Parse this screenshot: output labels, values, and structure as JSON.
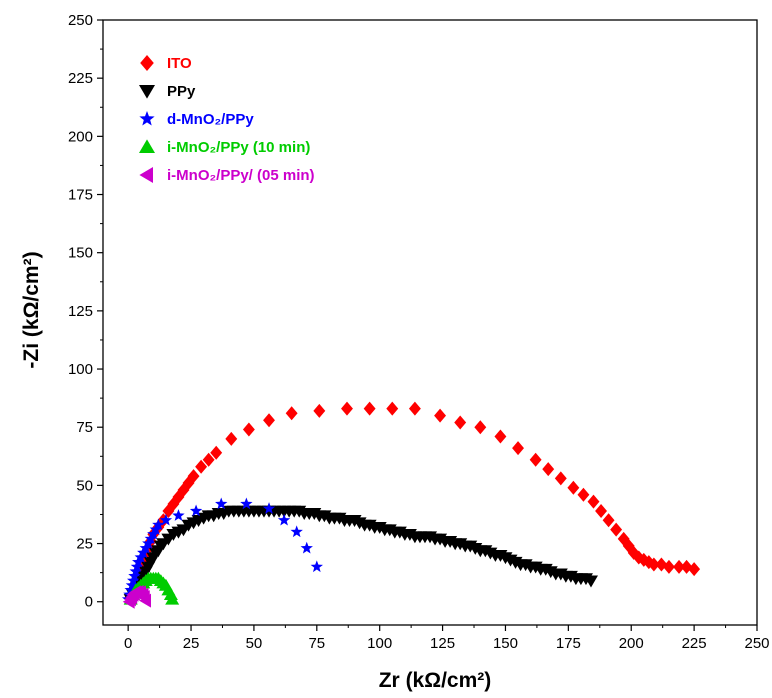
{
  "chart_data": {
    "type": "scatter",
    "xlabel": "Zr (kΩ/cm²)",
    "ylabel": "-Zi (kΩ/cm²)",
    "xlim": [
      -10,
      250
    ],
    "ylim": [
      -10,
      250
    ],
    "x_ticks": [
      "0",
      "25",
      "50",
      "75",
      "100",
      "125",
      "150",
      "175",
      "200",
      "225",
      "250"
    ],
    "y_ticks": [
      "0",
      "25",
      "50",
      "75",
      "100",
      "125",
      "150",
      "175",
      "200",
      "225",
      "250"
    ],
    "grid": false,
    "legend_position": "top-left",
    "series": [
      {
        "name": "ITO",
        "color": "#ff0000",
        "marker": "diamond",
        "points": [
          [
            1,
            2
          ],
          [
            2,
            5
          ],
          [
            3,
            8
          ],
          [
            4,
            11
          ],
          [
            5,
            14
          ],
          [
            6,
            17
          ],
          [
            7,
            20
          ],
          [
            8,
            23
          ],
          [
            9,
            26
          ],
          [
            10,
            29
          ],
          [
            12,
            32
          ],
          [
            14,
            35
          ],
          [
            16,
            39
          ],
          [
            18,
            42
          ],
          [
            20,
            45
          ],
          [
            22,
            48
          ],
          [
            24,
            51
          ],
          [
            26,
            54
          ],
          [
            29,
            58
          ],
          [
            32,
            61
          ],
          [
            35,
            64
          ],
          [
            41,
            70
          ],
          [
            48,
            74
          ],
          [
            56,
            78
          ],
          [
            65,
            81
          ],
          [
            76,
            82
          ],
          [
            87,
            83
          ],
          [
            96,
            83
          ],
          [
            105,
            83
          ],
          [
            114,
            83
          ],
          [
            124,
            80
          ],
          [
            132,
            77
          ],
          [
            140,
            75
          ],
          [
            148,
            71
          ],
          [
            155,
            66
          ],
          [
            162,
            61
          ],
          [
            167,
            57
          ],
          [
            172,
            53
          ],
          [
            177,
            49
          ],
          [
            181,
            46
          ],
          [
            185,
            43
          ],
          [
            188,
            39
          ],
          [
            191,
            35
          ],
          [
            194,
            31
          ],
          [
            197,
            27
          ],
          [
            199,
            24
          ],
          [
            201,
            21
          ],
          [
            203,
            19
          ],
          [
            205,
            18
          ],
          [
            207,
            17
          ],
          [
            209,
            16
          ],
          [
            212,
            16
          ],
          [
            215,
            15
          ],
          [
            219,
            15
          ],
          [
            222,
            15
          ],
          [
            225,
            14
          ]
        ]
      },
      {
        "name": "PPy",
        "color": "#000000",
        "marker": "triangle-down",
        "points": [
          [
            1,
            1
          ],
          [
            2,
            3
          ],
          [
            3,
            5
          ],
          [
            4,
            7
          ],
          [
            5,
            9
          ],
          [
            6,
            11
          ],
          [
            7,
            13
          ],
          [
            8,
            15
          ],
          [
            9,
            17
          ],
          [
            10,
            19
          ],
          [
            11,
            21
          ],
          [
            12,
            22
          ],
          [
            13,
            24
          ],
          [
            14,
            25
          ],
          [
            16,
            27
          ],
          [
            18,
            29
          ],
          [
            20,
            30
          ],
          [
            22,
            31
          ],
          [
            24,
            33
          ],
          [
            26,
            34
          ],
          [
            28,
            35
          ],
          [
            30,
            36
          ],
          [
            32,
            37
          ],
          [
            34,
            37
          ],
          [
            36,
            38
          ],
          [
            38,
            38
          ],
          [
            40,
            39
          ],
          [
            42,
            39
          ],
          [
            44,
            39
          ],
          [
            46,
            39
          ],
          [
            48,
            39
          ],
          [
            50,
            39
          ],
          [
            52,
            39
          ],
          [
            54,
            39
          ],
          [
            56,
            39
          ],
          [
            58,
            39
          ],
          [
            60,
            39
          ],
          [
            62,
            39
          ],
          [
            64,
            39
          ],
          [
            66,
            39
          ],
          [
            68,
            39
          ],
          [
            70,
            38
          ],
          [
            72,
            38
          ],
          [
            74,
            38
          ],
          [
            76,
            37
          ],
          [
            78,
            37
          ],
          [
            80,
            36
          ],
          [
            82,
            36
          ],
          [
            84,
            36
          ],
          [
            86,
            35
          ],
          [
            88,
            35
          ],
          [
            90,
            35
          ],
          [
            92,
            34
          ],
          [
            94,
            33
          ],
          [
            96,
            33
          ],
          [
            98,
            32
          ],
          [
            100,
            32
          ],
          [
            102,
            31
          ],
          [
            104,
            31
          ],
          [
            106,
            30
          ],
          [
            108,
            30
          ],
          [
            110,
            29
          ],
          [
            112,
            29
          ],
          [
            114,
            28
          ],
          [
            116,
            28
          ],
          [
            118,
            28
          ],
          [
            120,
            28
          ],
          [
            122,
            27
          ],
          [
            124,
            27
          ],
          [
            126,
            26
          ],
          [
            128,
            26
          ],
          [
            130,
            25
          ],
          [
            132,
            25
          ],
          [
            134,
            24
          ],
          [
            136,
            24
          ],
          [
            138,
            23
          ],
          [
            140,
            22
          ],
          [
            142,
            22
          ],
          [
            144,
            21
          ],
          [
            146,
            20
          ],
          [
            148,
            20
          ],
          [
            150,
            19
          ],
          [
            152,
            18
          ],
          [
            154,
            17
          ],
          [
            156,
            16
          ],
          [
            158,
            16
          ],
          [
            160,
            15
          ],
          [
            162,
            15
          ],
          [
            164,
            14
          ],
          [
            166,
            14
          ],
          [
            168,
            13
          ],
          [
            170,
            12
          ],
          [
            172,
            12
          ],
          [
            174,
            11
          ],
          [
            176,
            11
          ],
          [
            178,
            10
          ],
          [
            180,
            10
          ],
          [
            182,
            10
          ],
          [
            184,
            9
          ]
        ]
      },
      {
        "name": "d-MnO₂/PPy",
        "color": "#0000ff",
        "marker": "star",
        "points": [
          [
            0,
            1
          ],
          [
            0.5,
            3
          ],
          [
            1,
            5
          ],
          [
            1.5,
            7
          ],
          [
            2,
            9
          ],
          [
            2.5,
            11
          ],
          [
            3,
            13
          ],
          [
            3.5,
            15
          ],
          [
            4,
            17
          ],
          [
            5,
            19
          ],
          [
            6,
            21
          ],
          [
            7,
            23
          ],
          [
            8,
            25
          ],
          [
            9,
            27
          ],
          [
            10,
            29
          ],
          [
            11,
            31
          ],
          [
            12,
            33
          ],
          [
            15,
            35
          ],
          [
            20,
            37
          ],
          [
            27,
            39
          ],
          [
            37,
            42
          ],
          [
            47,
            42
          ],
          [
            56,
            40
          ],
          [
            62,
            35
          ],
          [
            67,
            30
          ],
          [
            71,
            23
          ],
          [
            75,
            15
          ]
        ]
      },
      {
        "name": "i-MnO₂/PPy (10 min)",
        "color": "#00cc00",
        "marker": "triangle-up",
        "points": [
          [
            1,
            1
          ],
          [
            2,
            3
          ],
          [
            3,
            5
          ],
          [
            4,
            6
          ],
          [
            5,
            7
          ],
          [
            6,
            8
          ],
          [
            7,
            9
          ],
          [
            8,
            10
          ],
          [
            9,
            10
          ],
          [
            10,
            10
          ],
          [
            11,
            10
          ],
          [
            12,
            10
          ],
          [
            13,
            9
          ],
          [
            14,
            8
          ],
          [
            15,
            7
          ],
          [
            16,
            5
          ],
          [
            17,
            3
          ],
          [
            17.5,
            1
          ]
        ]
      },
      {
        "name": "i-MnO₂/PPy/ (05 min)",
        "color": "#cc00cc",
        "marker": "triangle-left",
        "points": [
          [
            0.5,
            0
          ],
          [
            1,
            1
          ],
          [
            1.5,
            2
          ],
          [
            2,
            3
          ],
          [
            2.5,
            3.5
          ],
          [
            3,
            4
          ],
          [
            4,
            4.2
          ],
          [
            5,
            4
          ],
          [
            6,
            3
          ],
          [
            6.5,
            2
          ],
          [
            7,
            0.5
          ]
        ]
      }
    ]
  }
}
